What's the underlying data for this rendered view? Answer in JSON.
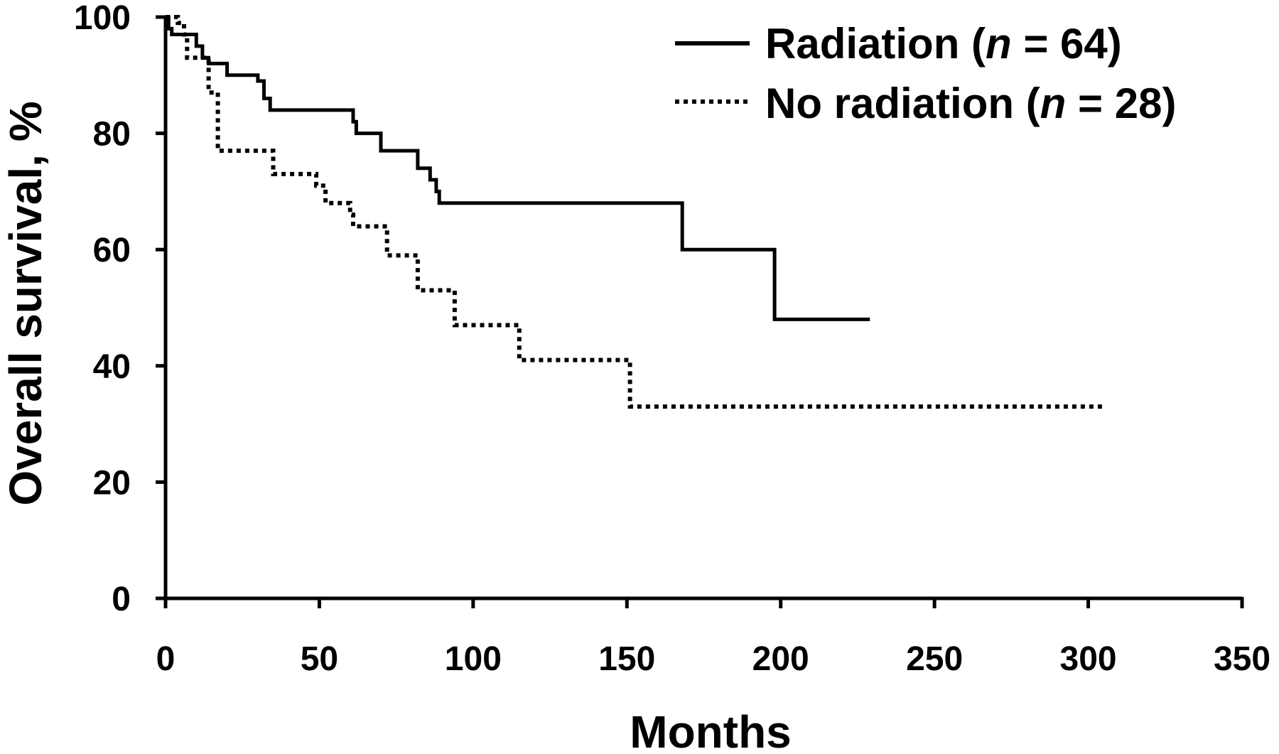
{
  "chart_data": {
    "type": "line",
    "xlabel": "Months",
    "ylabel": "Overall survival, %",
    "xlim": [
      0,
      350
    ],
    "ylim": [
      0,
      100
    ],
    "xticks": [
      0,
      50,
      100,
      150,
      200,
      250,
      300,
      350
    ],
    "yticks": [
      0,
      20,
      40,
      60,
      80,
      100
    ],
    "grid": false,
    "legend_position": "top-right",
    "series": [
      {
        "name": "Radiation",
        "n_label": "n",
        "n_value": "64",
        "style": "solid",
        "color": "#000000",
        "steps": [
          [
            0,
            100
          ],
          [
            1,
            98
          ],
          [
            2,
            97
          ],
          [
            10,
            95
          ],
          [
            12,
            93
          ],
          [
            14,
            92
          ],
          [
            20,
            90
          ],
          [
            30,
            89
          ],
          [
            32,
            86
          ],
          [
            34,
            84
          ],
          [
            61,
            82
          ],
          [
            62,
            80
          ],
          [
            70,
            77
          ],
          [
            82,
            74
          ],
          [
            86,
            72
          ],
          [
            88,
            70
          ],
          [
            89,
            68
          ],
          [
            168,
            60
          ],
          [
            198,
            48
          ],
          [
            229,
            48
          ]
        ]
      },
      {
        "name": "No radiation",
        "n_label": "n",
        "n_value": "28",
        "style": "dotted",
        "color": "#000000",
        "steps": [
          [
            0,
            100
          ],
          [
            4,
            99
          ],
          [
            6,
            97
          ],
          [
            7,
            93
          ],
          [
            14,
            87
          ],
          [
            17,
            77
          ],
          [
            35,
            73
          ],
          [
            49,
            71
          ],
          [
            52,
            68
          ],
          [
            60,
            66
          ],
          [
            61,
            64
          ],
          [
            72,
            59
          ],
          [
            82,
            53
          ],
          [
            94,
            47
          ],
          [
            115,
            41
          ],
          [
            151,
            33
          ],
          [
            305,
            33
          ]
        ]
      }
    ]
  }
}
